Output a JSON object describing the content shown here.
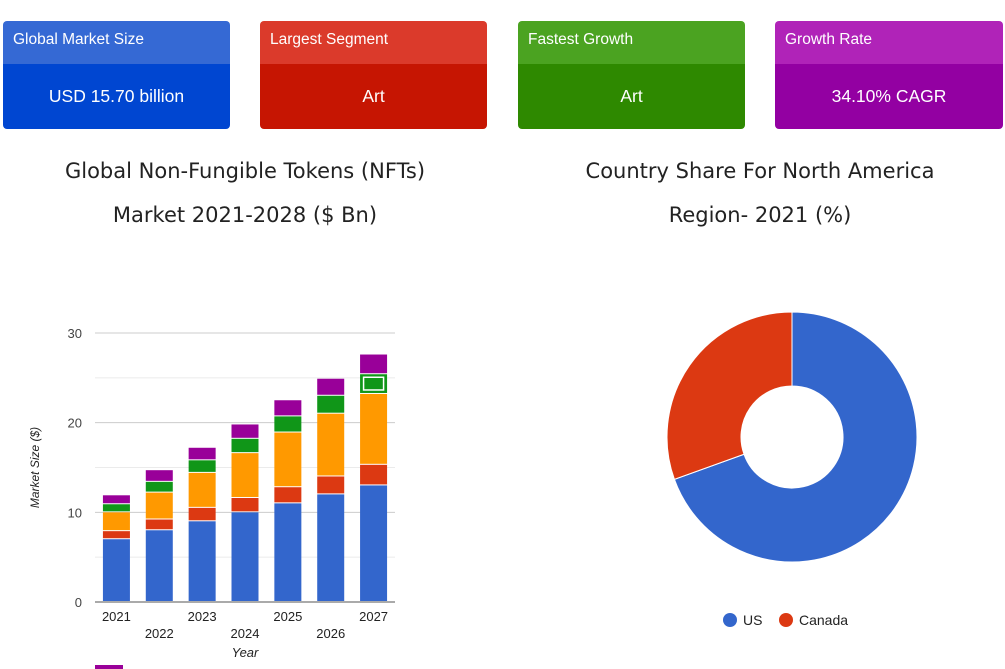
{
  "cards": [
    {
      "title": "Global Market Size",
      "value": "USD 15.70 billion",
      "head_color": "#3569d4",
      "body_color": "#0046d1"
    },
    {
      "title": "Largest Segment",
      "value": "Art",
      "head_color": "#db3a2b",
      "body_color": "#c61502"
    },
    {
      "title": "Fastest Growth",
      "value": "Art",
      "head_color": "#4ba321",
      "body_color": "#2e8900"
    },
    {
      "title": "Growth Rate",
      "value": "34.10% CAGR",
      "head_color": "#b023b8",
      "body_color": "#9300a2"
    }
  ],
  "left_chart": {
    "title_line1": "Global Non-Fungible Tokens (NFTs)",
    "title_line2": "Market 2021-2028 ($ Bn)"
  },
  "right_chart": {
    "title_line1": "Country Share For North America",
    "title_line2": "Region- 2021 (%)"
  },
  "chart_data": [
    {
      "type": "bar",
      "stacked": true,
      "xlabel": "Year",
      "ylabel": "Market Size ($)",
      "ylim": [
        0,
        30
      ],
      "yticks": [
        0,
        10,
        20,
        30
      ],
      "categories": [
        "2021",
        "2022",
        "2023",
        "2024",
        "2025",
        "2026",
        "2027"
      ],
      "series": [
        {
          "color": "#3366cc",
          "values": [
            7,
            8,
            9,
            10,
            11,
            12,
            13
          ]
        },
        {
          "color": "#dc3912",
          "values": [
            0.9,
            1.2,
            1.5,
            1.6,
            1.8,
            2.0,
            2.3
          ]
        },
        {
          "color": "#ff9900",
          "values": [
            2.1,
            3.0,
            3.9,
            5.0,
            6.1,
            7.0,
            7.9
          ]
        },
        {
          "color": "#109618",
          "values": [
            0.9,
            1.2,
            1.4,
            1.6,
            1.8,
            2.0,
            2.2
          ]
        },
        {
          "color": "#990099",
          "values": [
            1.0,
            1.3,
            1.4,
            1.6,
            1.8,
            1.9,
            2.2
          ]
        }
      ],
      "legend_partial": "Visible (Bottom, clipped)",
      "grid": true
    },
    {
      "type": "pie",
      "donut": true,
      "legend_position": "bottom",
      "slices": [
        {
          "label": "US",
          "value": 69.5,
          "color": "#3366cc"
        },
        {
          "label": "Canada",
          "value": 30.5,
          "color": "#dc3912"
        }
      ]
    }
  ]
}
